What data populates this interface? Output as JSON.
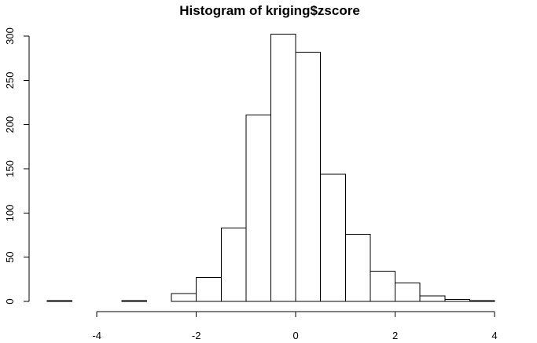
{
  "chart_data": {
    "type": "bar",
    "title": "Histogram of kriging$zscore",
    "xlabel": "",
    "ylabel": "",
    "bins": [
      {
        "x0": -5.0,
        "x1": -4.5,
        "count": 1
      },
      {
        "x0": -4.5,
        "x1": -4.0,
        "count": 0
      },
      {
        "x0": -4.0,
        "x1": -3.5,
        "count": 0
      },
      {
        "x0": -3.5,
        "x1": -3.0,
        "count": 1
      },
      {
        "x0": -3.0,
        "x1": -2.5,
        "count": 0
      },
      {
        "x0": -2.5,
        "x1": -2.0,
        "count": 9
      },
      {
        "x0": -2.0,
        "x1": -1.5,
        "count": 27
      },
      {
        "x0": -1.5,
        "x1": -1.0,
        "count": 83
      },
      {
        "x0": -1.0,
        "x1": -0.5,
        "count": 211
      },
      {
        "x0": -0.5,
        "x1": 0.0,
        "count": 302
      },
      {
        "x0": 0.0,
        "x1": 0.5,
        "count": 282
      },
      {
        "x0": 0.5,
        "x1": 1.0,
        "count": 144
      },
      {
        "x0": 1.0,
        "x1": 1.5,
        "count": 76
      },
      {
        "x0": 1.5,
        "x1": 2.0,
        "count": 34
      },
      {
        "x0": 2.0,
        "x1": 2.5,
        "count": 21
      },
      {
        "x0": 2.5,
        "x1": 3.0,
        "count": 6
      },
      {
        "x0": 3.0,
        "x1": 3.5,
        "count": 2
      },
      {
        "x0": 3.5,
        "x1": 4.0,
        "count": 1
      }
    ],
    "xlim": [
      -5,
      4
    ],
    "ylim": [
      0,
      300
    ],
    "x_ticks": [
      -4,
      -2,
      0,
      2,
      4
    ],
    "x_tick_labels": [
      "-4",
      "-2",
      "0",
      "2",
      "4"
    ],
    "y_ticks": [
      0,
      50,
      100,
      150,
      200,
      250,
      300
    ],
    "y_tick_labels": [
      "0",
      "50",
      "100",
      "150",
      "200",
      "250",
      "300"
    ],
    "grid": false,
    "colors": {
      "bar_fill": "#ffffff",
      "bar_stroke": "#000000"
    }
  }
}
